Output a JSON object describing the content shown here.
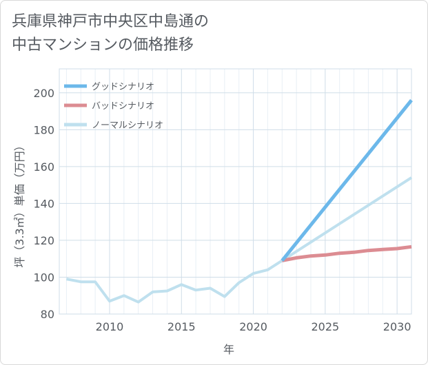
{
  "title_line1": "兵庫県神戸市中央区中島通の",
  "title_line2": "中古マンションの価格推移",
  "chart_data": {
    "type": "line",
    "title": "兵庫県神戸市中央区中島通の中古マンションの価格推移",
    "xlabel": "年",
    "ylabel": "坪（3.3㎡）単価（万円）",
    "xlim": [
      2006.5,
      2031
    ],
    "ylim": [
      80,
      213
    ],
    "xticks": [
      2010,
      2015,
      2020,
      2025,
      2030
    ],
    "yticks": [
      80,
      100,
      120,
      140,
      160,
      180,
      200
    ],
    "legend_position": "top-left",
    "series": [
      {
        "name": "グッドシナリオ",
        "color": "#6cb8ea",
        "x": [
          2022,
          2031
        ],
        "y": [
          109,
          196
        ]
      },
      {
        "name": "バッドシナリオ",
        "color": "#dc8c92",
        "x": [
          2022,
          2023,
          2024,
          2025,
          2026,
          2027,
          2028,
          2029,
          2030,
          2031
        ],
        "y": [
          109,
          110.5,
          111.5,
          112,
          113,
          113.5,
          114.5,
          115,
          115.5,
          116.5
        ]
      },
      {
        "name": "ノーマルシナリオ",
        "color": "#bfe0ee",
        "x": [
          2007,
          2008,
          2009,
          2010,
          2011,
          2012,
          2013,
          2014,
          2015,
          2016,
          2017,
          2018,
          2019,
          2020,
          2021,
          2022,
          2031
        ],
        "y": [
          99,
          97.5,
          97.5,
          87,
          90,
          86.5,
          92,
          92.5,
          96,
          93,
          94,
          89.5,
          97,
          102,
          104,
          109,
          154
        ]
      }
    ]
  }
}
